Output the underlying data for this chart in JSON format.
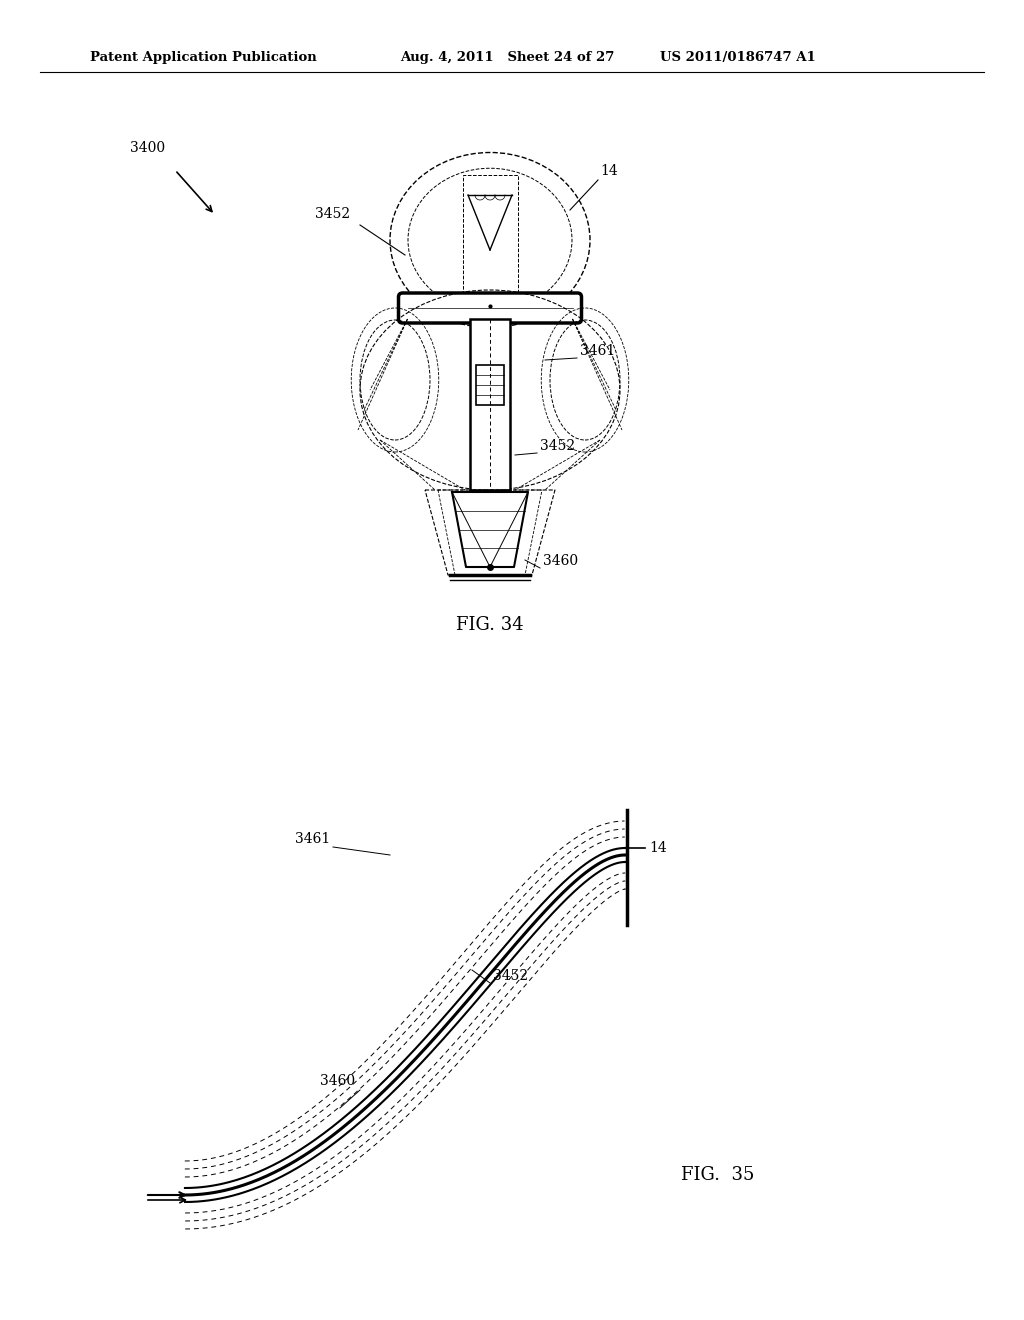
{
  "bg_color": "#ffffff",
  "header_left": "Patent Application Publication",
  "header_mid": "Aug. 4, 2011   Sheet 24 of 27",
  "header_right": "US 2011/0186747 A1",
  "fig34_label": "FIG. 34",
  "fig35_label": "FIG.  35",
  "label_3400": "3400",
  "label_14_top": "14",
  "label_3452_top": "3452",
  "label_3461": "3461",
  "label_3452_mid": "3452",
  "label_3460": "3460",
  "label_3461_b": "3461",
  "label_14_b": "14",
  "label_3452_b": "3452",
  "label_3460_b": "3460"
}
